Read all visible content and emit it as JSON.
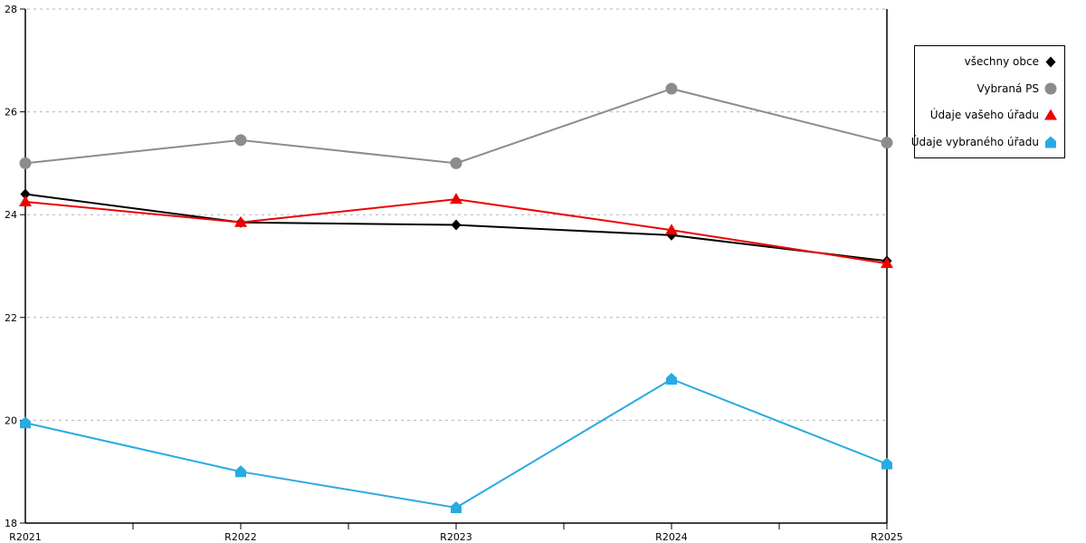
{
  "chart_data": {
    "type": "line",
    "title": "",
    "xlabel": "",
    "ylabel": "",
    "x_categories": [
      "R2021",
      "R2022",
      "R2023",
      "R2024",
      "R2025"
    ],
    "ylim": [
      18,
      28
    ],
    "yticks": [
      18,
      20,
      22,
      24,
      26,
      28
    ],
    "grid": "horizontal-dashed",
    "legend_position": "outside-top-right",
    "series": [
      {
        "name": "všechny obce",
        "marker": "diamond",
        "color": "#000000",
        "values": [
          24.4,
          23.85,
          23.8,
          23.6,
          23.1
        ]
      },
      {
        "name": "Vybraná PS",
        "marker": "circle",
        "color": "#8c8c8c",
        "values": [
          25.0,
          25.45,
          25.0,
          26.45,
          25.4
        ]
      },
      {
        "name": "Údaje vašeho úřadu",
        "marker": "triangle",
        "color": "#ee0000",
        "values": [
          24.25,
          23.85,
          24.3,
          23.7,
          23.05
        ]
      },
      {
        "name": "Údaje vybraného úřadu",
        "marker": "pentagon",
        "color": "#29abe2",
        "values": [
          19.95,
          19.0,
          18.3,
          20.8,
          19.15
        ]
      }
    ]
  },
  "colors": {
    "axis": "#000000",
    "gridline": "#b3b3b3",
    "background": "#ffffff",
    "tick_label": "#000000"
  }
}
